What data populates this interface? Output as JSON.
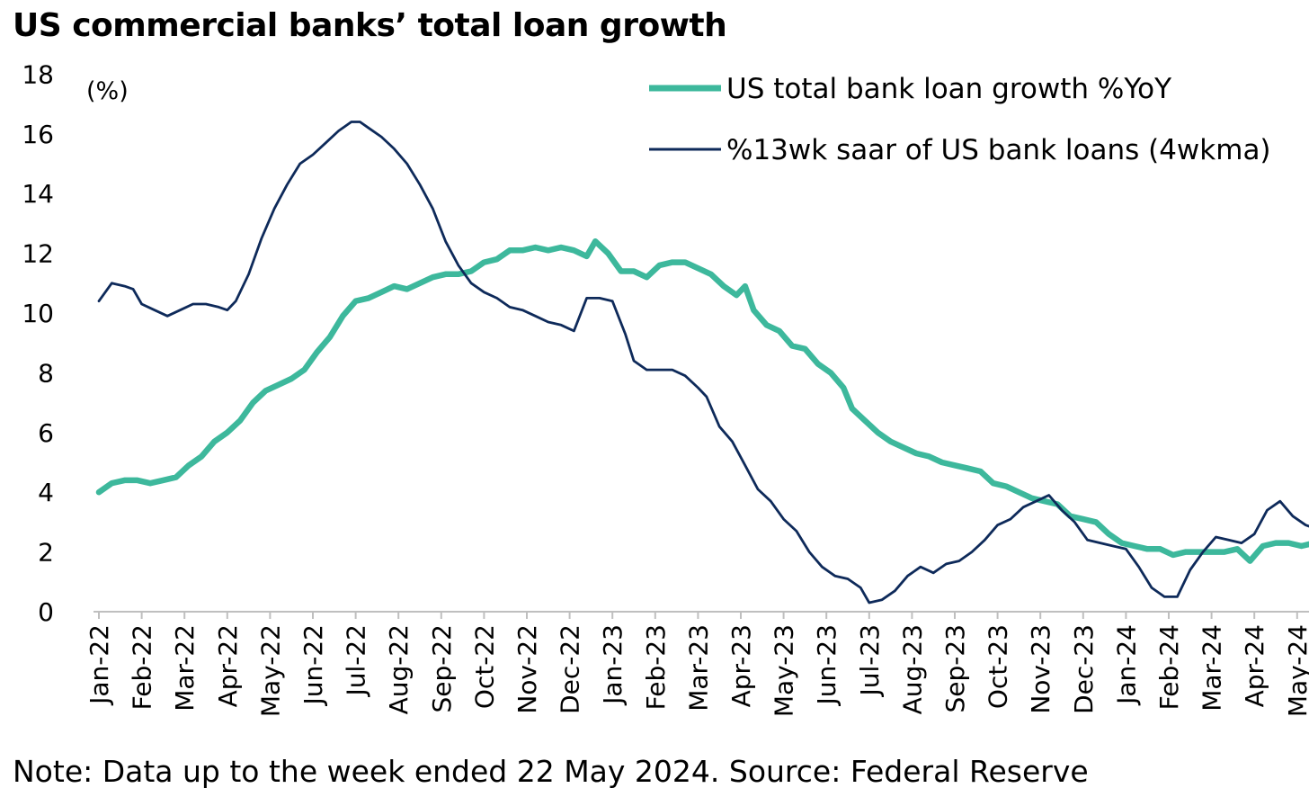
{
  "title": "US commercial banks’ total loan growth",
  "note": "Note: Data up to the week ended 22 May 2024. Source: Federal Reserve",
  "colors": {
    "yoy": "#3db89c",
    "saar": "#0e2a5a",
    "axis": "#bfbfbf"
  },
  "chart_data": {
    "type": "line",
    "title": "US commercial banks’ total loan growth",
    "ylabel": "(%)",
    "ylim": [
      0,
      18
    ],
    "yticks": [
      0,
      2,
      4,
      6,
      8,
      10,
      12,
      14,
      16,
      18
    ],
    "xlim": [
      0,
      28.4
    ],
    "categories": [
      "Jan-22",
      "Feb-22",
      "Mar-22",
      "Apr-22",
      "May-22",
      "Jun-22",
      "Jul-22",
      "Aug-22",
      "Sep-22",
      "Oct-22",
      "Nov-22",
      "Dec-22",
      "Jan-23",
      "Feb-23",
      "Mar-23",
      "Apr-23",
      "May-23",
      "Jun-23",
      "Jul-23",
      "Aug-23",
      "Sep-23",
      "Oct-23",
      "Nov-23",
      "Dec-23",
      "Jan-24",
      "Feb-24",
      "Mar-24",
      "Apr-24",
      "May-24"
    ],
    "legend_position": "top-right",
    "series": [
      {
        "name": "US total bank loan growth %YoY",
        "points": [
          [
            0,
            4.0
          ],
          [
            0.3,
            4.3
          ],
          [
            0.6,
            4.4
          ],
          [
            0.9,
            4.4
          ],
          [
            1.2,
            4.3
          ],
          [
            1.5,
            4.4
          ],
          [
            1.8,
            4.5
          ],
          [
            2.1,
            4.9
          ],
          [
            2.4,
            5.2
          ],
          [
            2.7,
            5.7
          ],
          [
            3.0,
            6.0
          ],
          [
            3.3,
            6.4
          ],
          [
            3.6,
            7.0
          ],
          [
            3.9,
            7.4
          ],
          [
            4.2,
            7.6
          ],
          [
            4.5,
            7.8
          ],
          [
            4.8,
            8.1
          ],
          [
            5.1,
            8.7
          ],
          [
            5.4,
            9.2
          ],
          [
            5.7,
            9.9
          ],
          [
            6.0,
            10.4
          ],
          [
            6.3,
            10.5
          ],
          [
            6.6,
            10.7
          ],
          [
            6.9,
            10.9
          ],
          [
            7.2,
            10.8
          ],
          [
            7.5,
            11.0
          ],
          [
            7.8,
            11.2
          ],
          [
            8.1,
            11.3
          ],
          [
            8.4,
            11.3
          ],
          [
            8.7,
            11.4
          ],
          [
            9.0,
            11.7
          ],
          [
            9.3,
            11.8
          ],
          [
            9.6,
            12.1
          ],
          [
            9.9,
            12.1
          ],
          [
            10.2,
            12.2
          ],
          [
            10.5,
            12.1
          ],
          [
            10.8,
            12.2
          ],
          [
            11.1,
            12.1
          ],
          [
            11.4,
            11.9
          ],
          [
            11.6,
            12.4
          ],
          [
            11.9,
            12.0
          ],
          [
            12.2,
            11.4
          ],
          [
            12.5,
            11.4
          ],
          [
            12.8,
            11.2
          ],
          [
            13.1,
            11.6
          ],
          [
            13.4,
            11.7
          ],
          [
            13.7,
            11.7
          ],
          [
            14.0,
            11.5
          ],
          [
            14.3,
            11.3
          ],
          [
            14.6,
            10.9
          ],
          [
            14.9,
            10.6
          ],
          [
            15.1,
            10.9
          ],
          [
            15.3,
            10.1
          ],
          [
            15.6,
            9.6
          ],
          [
            15.9,
            9.4
          ],
          [
            16.2,
            8.9
          ],
          [
            16.5,
            8.8
          ],
          [
            16.8,
            8.3
          ],
          [
            17.1,
            8.0
          ],
          [
            17.4,
            7.5
          ],
          [
            17.6,
            6.8
          ],
          [
            17.9,
            6.4
          ],
          [
            18.2,
            6.0
          ],
          [
            18.5,
            5.7
          ],
          [
            18.8,
            5.5
          ],
          [
            19.1,
            5.3
          ],
          [
            19.4,
            5.2
          ],
          [
            19.7,
            5.0
          ],
          [
            20.0,
            4.9
          ],
          [
            20.3,
            4.8
          ],
          [
            20.6,
            4.7
          ],
          [
            20.9,
            4.3
          ],
          [
            21.2,
            4.2
          ],
          [
            21.5,
            4.0
          ],
          [
            21.8,
            3.8
          ],
          [
            22.1,
            3.7
          ],
          [
            22.4,
            3.6
          ],
          [
            22.7,
            3.2
          ],
          [
            23.0,
            3.1
          ],
          [
            23.3,
            3.0
          ],
          [
            23.6,
            2.6
          ],
          [
            23.9,
            2.3
          ],
          [
            24.2,
            2.2
          ],
          [
            24.5,
            2.1
          ],
          [
            24.8,
            2.1
          ],
          [
            25.1,
            1.9
          ],
          [
            25.4,
            2.0
          ],
          [
            25.7,
            2.0
          ],
          [
            26.0,
            2.0
          ],
          [
            26.3,
            2.0
          ],
          [
            26.6,
            2.1
          ],
          [
            26.9,
            1.7
          ],
          [
            27.2,
            2.2
          ],
          [
            27.5,
            2.3
          ],
          [
            27.8,
            2.3
          ],
          [
            28.1,
            2.2
          ],
          [
            28.4,
            2.3
          ]
        ]
      },
      {
        "name": "%13wk saar of US bank loans (4wkma)",
        "points": [
          [
            0,
            10.4
          ],
          [
            0.3,
            11.0
          ],
          [
            0.6,
            10.9
          ],
          [
            0.8,
            10.8
          ],
          [
            1.0,
            10.3
          ],
          [
            1.3,
            10.1
          ],
          [
            1.6,
            9.9
          ],
          [
            1.9,
            10.1
          ],
          [
            2.2,
            10.3
          ],
          [
            2.5,
            10.3
          ],
          [
            2.8,
            10.2
          ],
          [
            3.0,
            10.1
          ],
          [
            3.2,
            10.4
          ],
          [
            3.5,
            11.3
          ],
          [
            3.8,
            12.5
          ],
          [
            4.1,
            13.5
          ],
          [
            4.4,
            14.3
          ],
          [
            4.7,
            15.0
          ],
          [
            5.0,
            15.3
          ],
          [
            5.3,
            15.7
          ],
          [
            5.6,
            16.1
          ],
          [
            5.9,
            16.4
          ],
          [
            6.1,
            16.4
          ],
          [
            6.3,
            16.2
          ],
          [
            6.6,
            15.9
          ],
          [
            6.9,
            15.5
          ],
          [
            7.2,
            15.0
          ],
          [
            7.5,
            14.3
          ],
          [
            7.8,
            13.5
          ],
          [
            8.1,
            12.4
          ],
          [
            8.4,
            11.6
          ],
          [
            8.7,
            11.0
          ],
          [
            9.0,
            10.7
          ],
          [
            9.3,
            10.5
          ],
          [
            9.6,
            10.2
          ],
          [
            9.9,
            10.1
          ],
          [
            10.2,
            9.9
          ],
          [
            10.5,
            9.7
          ],
          [
            10.8,
            9.6
          ],
          [
            11.1,
            9.4
          ],
          [
            11.4,
            10.5
          ],
          [
            11.7,
            10.5
          ],
          [
            12.0,
            10.4
          ],
          [
            12.3,
            9.3
          ],
          [
            12.5,
            8.4
          ],
          [
            12.8,
            8.1
          ],
          [
            13.1,
            8.1
          ],
          [
            13.4,
            8.1
          ],
          [
            13.7,
            7.9
          ],
          [
            14.0,
            7.5
          ],
          [
            14.2,
            7.2
          ],
          [
            14.5,
            6.2
          ],
          [
            14.8,
            5.7
          ],
          [
            15.1,
            4.9
          ],
          [
            15.4,
            4.1
          ],
          [
            15.7,
            3.7
          ],
          [
            16.0,
            3.1
          ],
          [
            16.3,
            2.7
          ],
          [
            16.6,
            2.0
          ],
          [
            16.9,
            1.5
          ],
          [
            17.2,
            1.2
          ],
          [
            17.5,
            1.1
          ],
          [
            17.8,
            0.8
          ],
          [
            18.0,
            0.3
          ],
          [
            18.3,
            0.4
          ],
          [
            18.6,
            0.7
          ],
          [
            18.9,
            1.2
          ],
          [
            19.2,
            1.5
          ],
          [
            19.5,
            1.3
          ],
          [
            19.8,
            1.6
          ],
          [
            20.1,
            1.7
          ],
          [
            20.4,
            2.0
          ],
          [
            20.7,
            2.4
          ],
          [
            21.0,
            2.9
          ],
          [
            21.3,
            3.1
          ],
          [
            21.6,
            3.5
          ],
          [
            21.9,
            3.7
          ],
          [
            22.2,
            3.9
          ],
          [
            22.5,
            3.4
          ],
          [
            22.8,
            3.0
          ],
          [
            23.1,
            2.4
          ],
          [
            23.4,
            2.3
          ],
          [
            23.7,
            2.2
          ],
          [
            24.0,
            2.1
          ],
          [
            24.3,
            1.5
          ],
          [
            24.6,
            0.8
          ],
          [
            24.9,
            0.5
          ],
          [
            25.2,
            0.5
          ],
          [
            25.5,
            1.4
          ],
          [
            25.8,
            2.0
          ],
          [
            26.1,
            2.5
          ],
          [
            26.4,
            2.4
          ],
          [
            26.7,
            2.3
          ],
          [
            27.0,
            2.6
          ],
          [
            27.3,
            3.4
          ],
          [
            27.6,
            3.7
          ],
          [
            27.9,
            3.2
          ],
          [
            28.2,
            2.9
          ],
          [
            28.4,
            2.8
          ]
        ]
      }
    ]
  }
}
